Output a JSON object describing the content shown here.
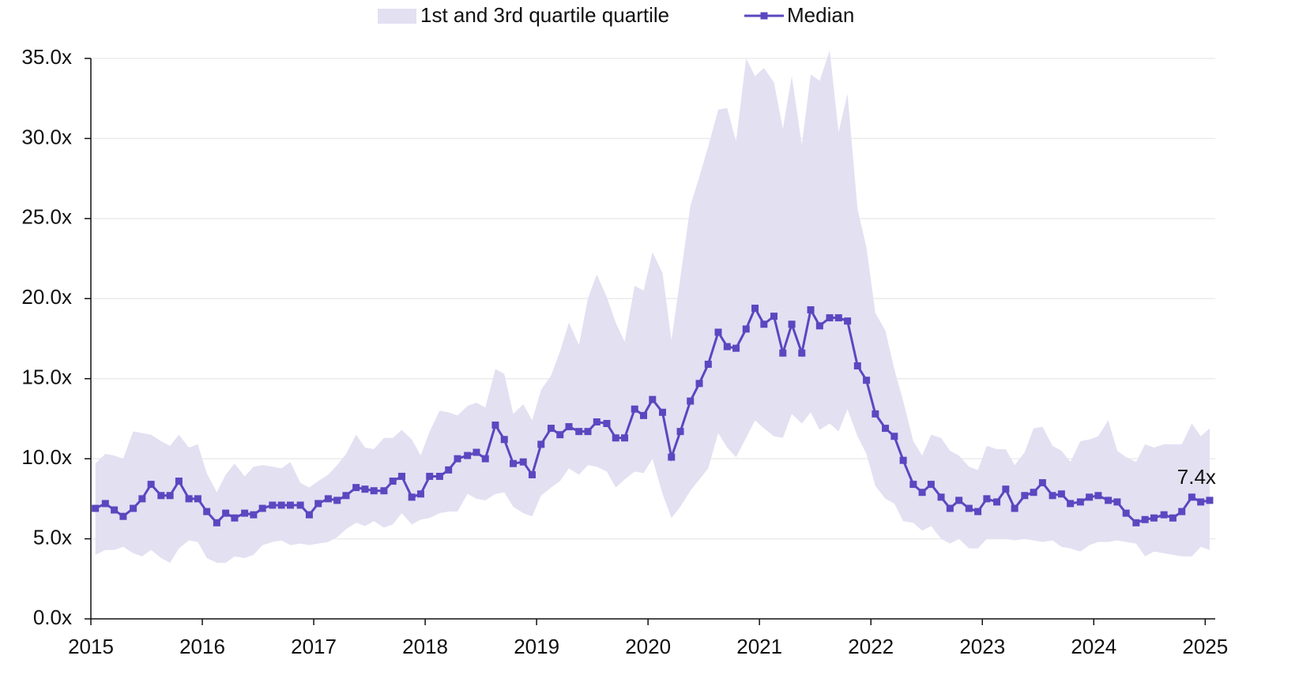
{
  "chart_data": {
    "type": "line",
    "x": [
      2015.04,
      2015.13,
      2015.21,
      2015.29,
      2015.38,
      2015.46,
      2015.54,
      2015.63,
      2015.71,
      2015.79,
      2015.88,
      2015.96,
      2016.04,
      2016.13,
      2016.21,
      2016.29,
      2016.38,
      2016.46,
      2016.54,
      2016.63,
      2016.71,
      2016.79,
      2016.88,
      2016.96,
      2017.04,
      2017.13,
      2017.21,
      2017.29,
      2017.38,
      2017.46,
      2017.54,
      2017.63,
      2017.71,
      2017.79,
      2017.88,
      2017.96,
      2018.04,
      2018.13,
      2018.21,
      2018.29,
      2018.38,
      2018.46,
      2018.54,
      2018.63,
      2018.71,
      2018.79,
      2018.88,
      2018.96,
      2019.04,
      2019.13,
      2019.21,
      2019.29,
      2019.38,
      2019.46,
      2019.54,
      2019.63,
      2019.71,
      2019.79,
      2019.88,
      2019.96,
      2020.04,
      2020.13,
      2020.21,
      2020.29,
      2020.38,
      2020.46,
      2020.54,
      2020.63,
      2020.71,
      2020.79,
      2020.88,
      2020.96,
      2021.04,
      2021.13,
      2021.21,
      2021.29,
      2021.38,
      2021.46,
      2021.54,
      2021.63,
      2021.71,
      2021.79,
      2021.88,
      2021.96,
      2022.04,
      2022.13,
      2022.21,
      2022.29,
      2022.38,
      2022.46,
      2022.54,
      2022.63,
      2022.71,
      2022.79,
      2022.88,
      2022.96,
      2023.04,
      2023.13,
      2023.21,
      2023.29,
      2023.38,
      2023.46,
      2023.54,
      2023.63,
      2023.71,
      2023.79,
      2023.88,
      2023.96,
      2024.04,
      2024.13,
      2024.21,
      2024.29,
      2024.38,
      2024.46,
      2024.54,
      2024.63,
      2024.71,
      2024.79,
      2024.88,
      2024.96,
      2025.04
    ],
    "series": [
      {
        "name": "1st and 3rd quartile quartile",
        "kind": "band",
        "color": "#e3e0f2",
        "upper": [
          9.7,
          10.3,
          10.2,
          10.0,
          11.7,
          11.6,
          11.5,
          11.1,
          10.8,
          11.5,
          10.7,
          10.9,
          9.1,
          7.9,
          9.0,
          9.7,
          8.9,
          9.5,
          9.6,
          9.5,
          9.4,
          9.8,
          8.5,
          8.2,
          8.6,
          9.0,
          9.6,
          10.3,
          11.5,
          10.7,
          10.6,
          11.3,
          11.3,
          11.8,
          11.2,
          10.2,
          11.7,
          13.0,
          12.9,
          12.7,
          13.3,
          13.5,
          13.2,
          15.6,
          15.3,
          12.8,
          13.4,
          12.4,
          14.3,
          15.2,
          16.7,
          18.5,
          17.1,
          20.0,
          21.5,
          20.1,
          18.5,
          17.3,
          20.8,
          20.5,
          22.9,
          21.6,
          17.4,
          21.3,
          25.8,
          27.6,
          29.5,
          31.8,
          31.9,
          29.8,
          35.0,
          33.9,
          34.4,
          33.5,
          30.6,
          33.9,
          29.6,
          34.0,
          33.6,
          35.5,
          30.4,
          32.8,
          25.6,
          23.2,
          19.1,
          18.0,
          15.6,
          13.6,
          11.1,
          10.2,
          11.5,
          11.3,
          10.5,
          10.2,
          9.5,
          9.3,
          10.8,
          10.6,
          10.6,
          9.6,
          10.4,
          11.9,
          12.0,
          10.8,
          10.5,
          9.8,
          11.1,
          11.2,
          11.4,
          12.4,
          10.5,
          10.1,
          9.8,
          10.9,
          10.7,
          10.9,
          10.9,
          10.9,
          12.2,
          11.4,
          11.9
        ],
        "lower": [
          4.0,
          4.3,
          4.3,
          4.5,
          4.1,
          3.9,
          4.3,
          3.8,
          3.5,
          4.4,
          4.9,
          4.8,
          3.8,
          3.5,
          3.5,
          3.9,
          3.8,
          4.0,
          4.6,
          4.8,
          4.9,
          4.6,
          4.7,
          4.6,
          4.7,
          4.8,
          5.1,
          5.6,
          6.0,
          5.8,
          6.1,
          5.7,
          5.9,
          6.6,
          5.9,
          6.2,
          6.3,
          6.6,
          6.7,
          6.7,
          7.8,
          7.5,
          7.4,
          7.8,
          7.9,
          7.0,
          6.6,
          6.4,
          7.7,
          8.2,
          8.6,
          9.4,
          9.0,
          9.6,
          9.5,
          9.2,
          8.2,
          8.7,
          9.2,
          9.1,
          10.0,
          7.8,
          6.3,
          7.0,
          8.0,
          8.7,
          9.4,
          11.6,
          10.7,
          10.1,
          11.3,
          12.4,
          11.9,
          11.4,
          11.3,
          12.8,
          12.2,
          12.9,
          11.8,
          12.2,
          11.7,
          13.1,
          11.4,
          10.3,
          8.3,
          7.5,
          7.2,
          6.1,
          6.0,
          5.5,
          5.8,
          5.0,
          4.7,
          5.0,
          4.4,
          4.4,
          5.0,
          5.0,
          5.0,
          4.9,
          5.0,
          4.9,
          4.8,
          4.9,
          4.5,
          4.4,
          4.2,
          4.6,
          4.8,
          4.8,
          4.9,
          4.8,
          4.7,
          3.9,
          4.2,
          4.1,
          4.0,
          3.9,
          3.9,
          4.5,
          4.3
        ]
      },
      {
        "name": "Median",
        "kind": "line",
        "color": "#5b47c0",
        "values": [
          6.9,
          7.2,
          6.8,
          6.4,
          6.9,
          7.5,
          8.4,
          7.7,
          7.7,
          8.6,
          7.5,
          7.5,
          6.7,
          6.0,
          6.6,
          6.3,
          6.6,
          6.5,
          6.9,
          7.1,
          7.1,
          7.1,
          7.1,
          6.5,
          7.2,
          7.5,
          7.4,
          7.7,
          8.2,
          8.1,
          8.0,
          8.0,
          8.6,
          8.9,
          7.6,
          7.8,
          8.9,
          8.9,
          9.3,
          10.0,
          10.2,
          10.4,
          10.0,
          12.1,
          11.2,
          9.7,
          9.8,
          9.0,
          10.9,
          11.9,
          11.5,
          12.0,
          11.7,
          11.7,
          12.3,
          12.2,
          11.3,
          11.3,
          13.1,
          12.7,
          13.7,
          12.9,
          10.1,
          11.7,
          13.6,
          14.7,
          15.9,
          17.9,
          17.0,
          16.9,
          18.1,
          19.4,
          18.4,
          18.9,
          16.6,
          18.4,
          16.6,
          19.3,
          18.3,
          18.8,
          18.8,
          18.6,
          15.8,
          14.9,
          12.8,
          11.9,
          11.4,
          9.9,
          8.4,
          7.9,
          8.4,
          7.6,
          6.9,
          7.4,
          6.9,
          6.7,
          7.5,
          7.3,
          8.1,
          6.9,
          7.7,
          7.9,
          8.5,
          7.7,
          7.8,
          7.2,
          7.3,
          7.6,
          7.7,
          7.4,
          7.3,
          6.6,
          6.0,
          6.2,
          6.3,
          6.5,
          6.3,
          6.7,
          7.6,
          7.3,
          7.4
        ]
      }
    ],
    "annotation": "7.4x",
    "xlim": [
      2015,
      2025.09
    ],
    "xticks": [
      2015,
      2016,
      2017,
      2018,
      2019,
      2020,
      2021,
      2022,
      2023,
      2024,
      2025
    ],
    "ylim": [
      0,
      35
    ],
    "yticks": [
      {
        "value": 0,
        "label": "0.0x"
      },
      {
        "value": 5,
        "label": "5.0x"
      },
      {
        "value": 10,
        "label": "10.0x"
      },
      {
        "value": 15,
        "label": "15.0x"
      },
      {
        "value": 20,
        "label": "20.0x"
      },
      {
        "value": 25,
        "label": "25.0x"
      },
      {
        "value": 30,
        "label": "30.0x"
      },
      {
        "value": 35,
        "label": "35.0x"
      }
    ],
    "grid": true,
    "legend": "top"
  }
}
